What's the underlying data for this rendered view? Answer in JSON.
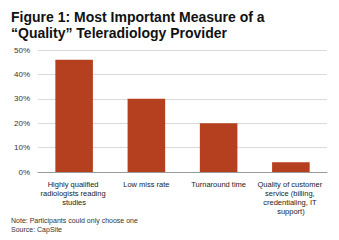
{
  "chart_data": {
    "type": "bar",
    "title": "Figure 1: Most Important Measure of a “Quality” Teleradiology Provider",
    "categories": [
      "Highly qualified radiologists reading studies",
      "Low miss rate",
      "Turnaround time",
      "Quality of customer service (billing, credentialing, IT support)"
    ],
    "values": [
      46,
      30,
      20,
      4
    ],
    "color": "#b5401f",
    "ylim": [
      0,
      50
    ],
    "yticks": [
      {
        "value": 0,
        "label": "0%"
      },
      {
        "value": 10,
        "label": "10%"
      },
      {
        "value": 20,
        "label": "20%"
      },
      {
        "value": 30,
        "label": "30%"
      },
      {
        "value": 40,
        "label": "40%"
      },
      {
        "value": 50,
        "label": "50%"
      }
    ],
    "grid": true,
    "annotations": [
      "Note: Participants could only choose one",
      "Source: CapSite"
    ]
  }
}
